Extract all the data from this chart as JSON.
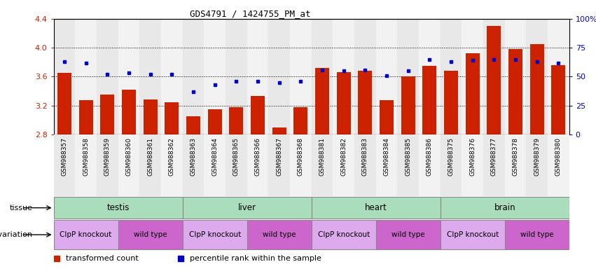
{
  "title": "GDS4791 / 1424755_PM_at",
  "samples": [
    "GSM988357",
    "GSM988358",
    "GSM988359",
    "GSM988360",
    "GSM988361",
    "GSM988362",
    "GSM988363",
    "GSM988364",
    "GSM988365",
    "GSM988366",
    "GSM988367",
    "GSM988368",
    "GSM988381",
    "GSM988382",
    "GSM988383",
    "GSM988384",
    "GSM988385",
    "GSM988386",
    "GSM988375",
    "GSM988376",
    "GSM988377",
    "GSM988378",
    "GSM988379",
    "GSM988380"
  ],
  "bar_values": [
    3.65,
    3.27,
    3.35,
    3.42,
    3.28,
    3.25,
    3.05,
    3.15,
    3.18,
    3.33,
    2.9,
    3.18,
    3.72,
    3.66,
    3.68,
    3.27,
    3.6,
    3.75,
    3.68,
    3.92,
    4.3,
    3.98,
    4.05,
    3.76
  ],
  "percentile_values": [
    63,
    62,
    52,
    53,
    52,
    52,
    37,
    43,
    46,
    46,
    45,
    46,
    56,
    55,
    56,
    51,
    55,
    65,
    63,
    64,
    65,
    65,
    63,
    62
  ],
  "tissues": [
    {
      "name": "testis",
      "start": 0,
      "end": 5
    },
    {
      "name": "liver",
      "start": 6,
      "end": 11
    },
    {
      "name": "heart",
      "start": 12,
      "end": 17
    },
    {
      "name": "brain",
      "start": 18,
      "end": 23
    }
  ],
  "genotypes": [
    {
      "name": "ClpP knockout",
      "start": 0,
      "end": 2
    },
    {
      "name": "wild type",
      "start": 3,
      "end": 5
    },
    {
      "name": "ClpP knockout",
      "start": 6,
      "end": 8
    },
    {
      "name": "wild type",
      "start": 9,
      "end": 11
    },
    {
      "name": "ClpP knockout",
      "start": 12,
      "end": 14
    },
    {
      "name": "wild type",
      "start": 15,
      "end": 17
    },
    {
      "name": "ClpP knockout",
      "start": 18,
      "end": 20
    },
    {
      "name": "wild type",
      "start": 21,
      "end": 23
    }
  ],
  "ylim_left": [
    2.8,
    4.4
  ],
  "ylim_right": [
    0,
    100
  ],
  "yticks_left": [
    2.8,
    3.2,
    3.6,
    4.0,
    4.4
  ],
  "yticks_right": [
    0,
    25,
    50,
    75,
    100
  ],
  "bar_color": "#cc2200",
  "dot_color": "#0000cc",
  "tissue_color_light": "#bbeecc",
  "tissue_color_dark": "#44cc66",
  "knockout_color": "#ddaaee",
  "wildtype_color": "#cc66cc",
  "legend_items": [
    {
      "label": "transformed count",
      "color": "#cc2200"
    },
    {
      "label": "percentile rank within the sample",
      "color": "#0000cc"
    }
  ]
}
